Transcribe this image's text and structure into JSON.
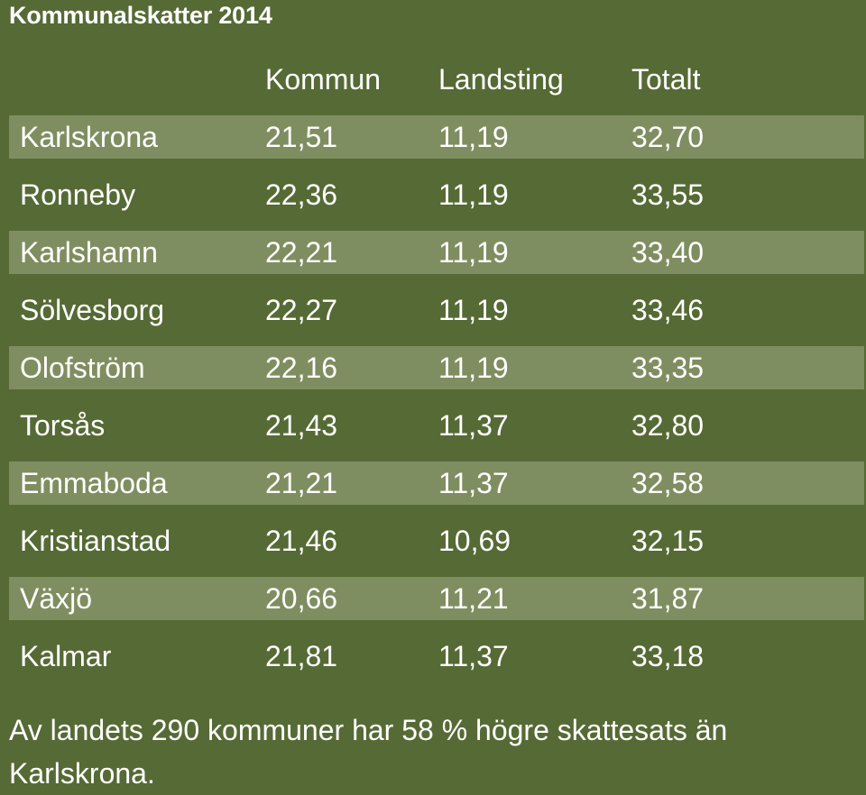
{
  "title": "Kommunalskatter 2014",
  "columns": {
    "kommun": "Kommun",
    "landsting": "Landsting",
    "totalt": "Totalt"
  },
  "rows": [
    {
      "name": "Karlskrona",
      "kommun": "21,51",
      "landsting": "11,19",
      "totalt": "32,70"
    },
    {
      "name": "Ronneby",
      "kommun": "22,36",
      "landsting": "11,19",
      "totalt": "33,55"
    },
    {
      "name": "Karlshamn",
      "kommun": "22,21",
      "landsting": "11,19",
      "totalt": "33,40"
    },
    {
      "name": "Sölvesborg",
      "kommun": "22,27",
      "landsting": "11,19",
      "totalt": "33,46"
    },
    {
      "name": "Olofström",
      "kommun": "22,16",
      "landsting": "11,19",
      "totalt": "33,35"
    },
    {
      "name": "Torsås",
      "kommun": "21,43",
      "landsting": "11,37",
      "totalt": "32,80"
    },
    {
      "name": "Emmaboda",
      "kommun": "21,21",
      "landsting": "11,37",
      "totalt": "32,58"
    },
    {
      "name": "Kristianstad",
      "kommun": "21,46",
      "landsting": "10,69",
      "totalt": "32,15"
    },
    {
      "name": "Växjö",
      "kommun": "20,66",
      "landsting": "11,21",
      "totalt": "31,87"
    },
    {
      "name": "Kalmar",
      "kommun": "21,81",
      "landsting": "11,37",
      "totalt": "33,18"
    }
  ],
  "footnote": "Av landets 290 kommuner har 58 % högre skattesats än Karlskrona.",
  "colors": {
    "background": "#566a35",
    "row_highlight": "#7f8e60",
    "text": "#ffffff"
  }
}
